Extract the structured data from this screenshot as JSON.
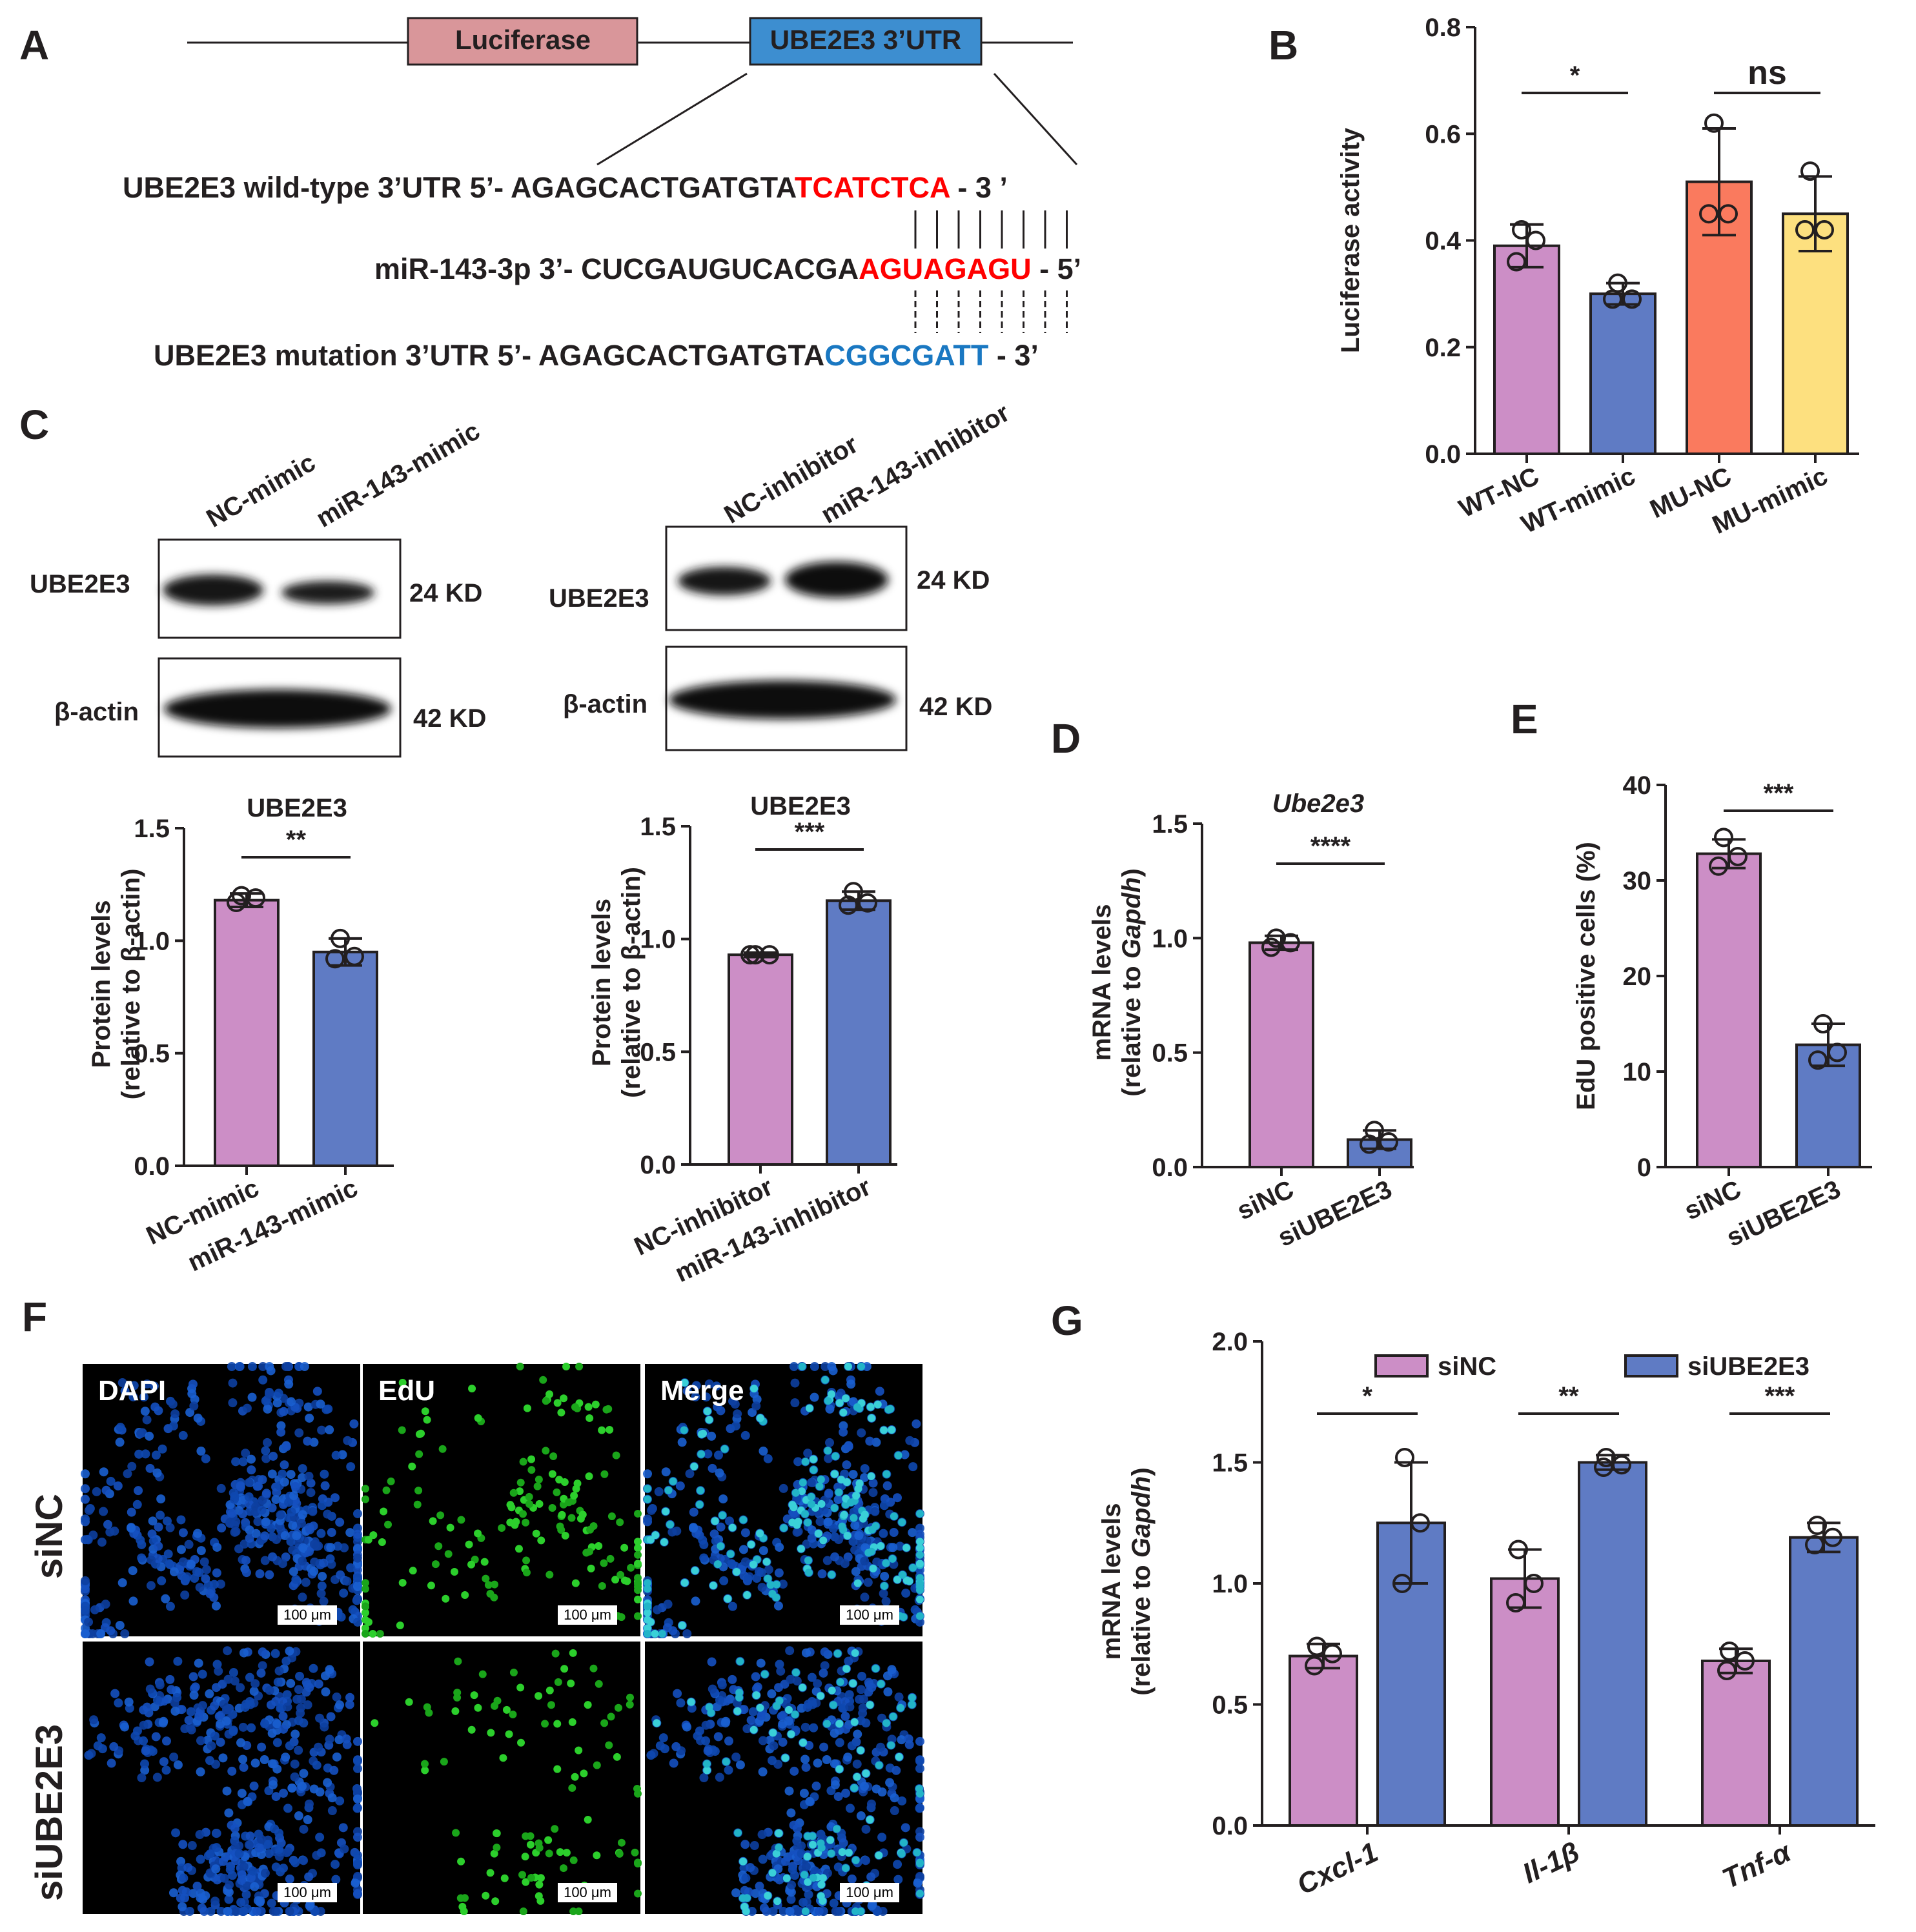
{
  "panels": {
    "A": {
      "letter": "A",
      "construct": {
        "luciferase": "Luciferase",
        "utr": "UBE2E3  3’UTR"
      },
      "wild_type": {
        "label": "UBE2E3 wild-type  3’UTR  5’- AGAGCACTGATGTA",
        "seed": "TCATCTCA",
        "end": " - 3 ’"
      },
      "mirna": {
        "label": "miR-143-3p  3’- CUCGAUGUCACGA",
        "seed": "AGUAGAGU",
        "end": " - 5’"
      },
      "mutation": {
        "label": "UBE2E3 mutation  3’UTR  5’- AGAGCACTGATGTA",
        "seed": "CGGCGATT",
        "end": " - 3’"
      },
      "colors": {
        "luciferase_fill": "#d9969a",
        "utr_fill": "#3d8ed0",
        "wt_seed": "#ff0000",
        "mut_seed": "#1a78c2"
      }
    },
    "B": {
      "letter": "B"
    },
    "C": {
      "letter": "C",
      "blot_left": {
        "lanes": [
          "NC-mimic",
          "miR-143-mimic"
        ],
        "rows": [
          "UBE2E3",
          "β-actin"
        ],
        "sizes": [
          "24 KD",
          "42 KD"
        ]
      },
      "blot_right": {
        "lanes": [
          "NC-inhibitor",
          "miR-143-inhibitor"
        ],
        "rows": [
          "UBE2E3",
          "β-actin"
        ],
        "sizes": [
          "24 KD",
          "42 KD"
        ]
      }
    },
    "D": {
      "letter": "D"
    },
    "E": {
      "letter": "E"
    },
    "F": {
      "letter": "F",
      "columns": [
        "DAPI",
        "EdU",
        "Merge"
      ],
      "rows": [
        "siNC",
        "siUBE2E3"
      ],
      "scale_bar": "100 μm"
    },
    "G": {
      "letter": "G"
    }
  },
  "chart_data": [
    {
      "id": "B",
      "type": "bar",
      "categories": [
        "WT-NC",
        "WT-mimic",
        "MU-NC",
        "MU-mimic"
      ],
      "values": [
        0.39,
        0.3,
        0.51,
        0.45
      ],
      "errors": [
        0.04,
        0.02,
        0.1,
        0.07
      ],
      "points": [
        [
          0.42,
          0.4,
          0.36
        ],
        [
          0.32,
          0.29,
          0.29
        ],
        [
          0.62,
          0.45,
          0.45
        ],
        [
          0.53,
          0.42,
          0.42
        ]
      ],
      "colors": [
        "#cc8ec6",
        "#5f7bc4",
        "#fa7a5e",
        "#fde07f"
      ],
      "ylabel": "Luciferase activity",
      "ylim": [
        0,
        0.8
      ],
      "yticks": [
        "0.0",
        "0.2",
        "0.4",
        "0.6",
        "0.8"
      ],
      "annotations": [
        {
          "text": "*",
          "between": [
            0,
            1
          ]
        },
        {
          "text": "ns",
          "between": [
            2,
            3
          ]
        }
      ]
    },
    {
      "id": "C1",
      "type": "bar",
      "title": "UBE2E3",
      "categories": [
        "NC-mimic",
        "miR-143-mimic"
      ],
      "values": [
        1.18,
        0.95
      ],
      "errors": [
        0.03,
        0.06
      ],
      "points": [
        [
          1.2,
          1.19,
          1.17
        ],
        [
          1.01,
          0.93,
          0.92
        ]
      ],
      "colors": [
        "#cc8ec6",
        "#5f7bc4"
      ],
      "ylabel": [
        "Protein levels",
        "(relative to β-actin)"
      ],
      "ylim": [
        0,
        1.5
      ],
      "yticks": [
        "0.0",
        "0.5",
        "1.0",
        "1.5"
      ],
      "annotations": [
        {
          "text": "**",
          "between": [
            0,
            1
          ]
        }
      ]
    },
    {
      "id": "C2",
      "type": "bar",
      "title": "UBE2E3",
      "categories": [
        "NC-inhibitor",
        "miR-143-inhibitor"
      ],
      "values": [
        0.93,
        1.17
      ],
      "errors": [
        0.01,
        0.04
      ],
      "points": [
        [
          0.93,
          0.93,
          0.93
        ],
        [
          1.21,
          1.16,
          1.15
        ]
      ],
      "colors": [
        "#cc8ec6",
        "#5f7bc4"
      ],
      "ylabel": [
        "Protein levels",
        "(relative to β-actin)"
      ],
      "ylim": [
        0,
        1.5
      ],
      "yticks": [
        "0.0",
        "0.5",
        "1.0",
        "1.5"
      ],
      "annotations": [
        {
          "text": "***",
          "between": [
            0,
            1
          ]
        }
      ]
    },
    {
      "id": "D",
      "type": "bar",
      "title": "Ube2e3",
      "categories": [
        "siNC",
        "siUBE2E3"
      ],
      "values": [
        0.98,
        0.12
      ],
      "errors": [
        0.03,
        0.04
      ],
      "points": [
        [
          1.0,
          0.98,
          0.96
        ],
        [
          0.16,
          0.11,
          0.1
        ]
      ],
      "colors": [
        "#cc8ec6",
        "#5f7bc4"
      ],
      "ylabel": [
        "mRNA levels",
        "(relative to Gapdh)"
      ],
      "ylim": [
        0,
        1.5
      ],
      "yticks": [
        "0.0",
        "0.5",
        "1.0",
        "1.5"
      ],
      "annotations": [
        {
          "text": "****",
          "between": [
            0,
            1
          ]
        }
      ]
    },
    {
      "id": "E",
      "type": "bar",
      "categories": [
        "siNC",
        "siUBE2E3"
      ],
      "values": [
        32.8,
        12.8
      ],
      "errors": [
        1.5,
        2.2
      ],
      "points": [
        [
          34.5,
          32.5,
          31.5
        ],
        [
          15.0,
          12.0,
          11.2
        ]
      ],
      "colors": [
        "#cc8ec6",
        "#5f7bc4"
      ],
      "ylabel": "EdU positive cells (%)",
      "ylim": [
        0,
        40
      ],
      "yticks": [
        "0",
        "10",
        "20",
        "30",
        "40"
      ],
      "annotations": [
        {
          "text": "***",
          "between": [
            0,
            1
          ]
        }
      ]
    },
    {
      "id": "G",
      "type": "bar",
      "categories": [
        "Cxcl-1",
        "Il-1β",
        "Tnf-α"
      ],
      "series": [
        {
          "name": "siNC",
          "values": [
            0.7,
            1.02,
            0.68
          ],
          "errors": [
            0.05,
            0.12,
            0.05
          ],
          "points": [
            [
              0.74,
              0.71,
              0.66
            ],
            [
              1.14,
              1.0,
              0.92
            ],
            [
              0.72,
              0.68,
              0.64
            ]
          ],
          "color": "#cc8ec6"
        },
        {
          "name": "siUBE2E3",
          "values": [
            1.25,
            1.5,
            1.19
          ],
          "errors": [
            0.25,
            0.03,
            0.06
          ],
          "points": [
            [
              1.52,
              1.25,
              1.0
            ],
            [
              1.52,
              1.49,
              1.48
            ],
            [
              1.24,
              1.19,
              1.16
            ]
          ],
          "color": "#5f7bc4"
        }
      ],
      "ylabel": [
        "mRNA levels",
        "(relative to Gapdh)"
      ],
      "ylim": [
        0,
        2.0
      ],
      "yticks": [
        "0.0",
        "0.5",
        "1.0",
        "1.5",
        "2.0"
      ],
      "legend": "top",
      "annotations": [
        {
          "text": "*",
          "group": 0
        },
        {
          "text": "**",
          "group": 1
        },
        {
          "text": "***",
          "group": 2
        }
      ]
    }
  ]
}
